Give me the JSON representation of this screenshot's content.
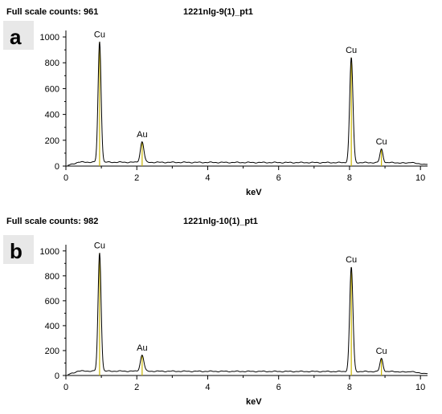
{
  "chart_data": [
    {
      "type": "line",
      "panel_label": "a",
      "header_counts": "Full scale counts: 961",
      "header_sample": "1221nlg-9(1)_pt1",
      "xlabel": "keV",
      "xlim": [
        0,
        10.2
      ],
      "ylim": [
        0,
        1050
      ],
      "xticks": [
        "0",
        "2",
        "4",
        "6",
        "8",
        "10"
      ],
      "yticks": [
        "0",
        "200",
        "400",
        "600",
        "800",
        "1000"
      ],
      "background_level": 25,
      "peaks": [
        {
          "label": "Cu",
          "x": 0.95,
          "y": 961
        },
        {
          "label": "Au",
          "x": 2.15,
          "y": 185
        },
        {
          "label": "Cu",
          "x": 8.05,
          "y": 840
        },
        {
          "label": "Cu",
          "x": 8.9,
          "y": 130
        }
      ]
    },
    {
      "type": "line",
      "panel_label": "b",
      "header_counts": "Full scale counts: 982",
      "header_sample": "1221nlg-10(1)_pt1",
      "xlabel": "keV",
      "xlim": [
        0,
        10.2
      ],
      "ylim": [
        0,
        1050
      ],
      "xticks": [
        "0",
        "2",
        "4",
        "6",
        "8",
        "10"
      ],
      "yticks": [
        "0",
        "200",
        "400",
        "600",
        "800",
        "1000"
      ],
      "background_level": 30,
      "peaks": [
        {
          "label": "Cu",
          "x": 0.95,
          "y": 982
        },
        {
          "label": "Au",
          "x": 2.15,
          "y": 160
        },
        {
          "label": "Cu",
          "x": 8.05,
          "y": 870
        },
        {
          "label": "Cu",
          "x": 8.9,
          "y": 135
        }
      ]
    }
  ]
}
